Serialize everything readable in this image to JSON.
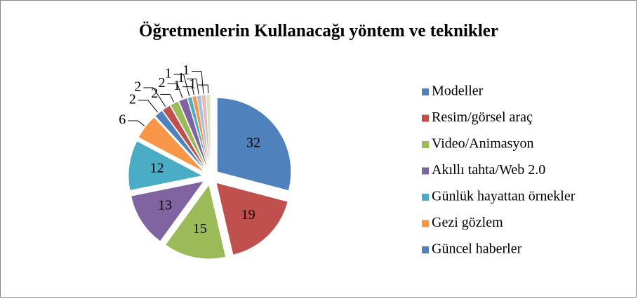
{
  "chart_data": {
    "type": "pie",
    "title": "Öğretmenlerin Kullanacağı yöntem ve teknikler",
    "categories": [
      "Modeller",
      "Resim/görsel araç",
      "Video/Animasyon",
      "Akıllı tahta/Web 2.0",
      "Günlük hayattan örnekler",
      "Gezi gözlem",
      "Güncel haberler",
      null,
      null,
      null,
      null,
      null,
      null,
      null,
      null
    ],
    "values": [
      32,
      19,
      15,
      13,
      12,
      6,
      2,
      2,
      2,
      2,
      1,
      1,
      1,
      1,
      1
    ],
    "colors": [
      "#4F81BD",
      "#C0504D",
      "#9BBB59",
      "#8064A2",
      "#4BACC6",
      "#F79646",
      "#4F81BD",
      "#C0504D",
      "#9BBB59",
      "#8064A2",
      "#4BACC6",
      "#F79646",
      "#A7BFDE",
      "#E6B9B8",
      "#D7E4BD"
    ],
    "legend": "right"
  }
}
